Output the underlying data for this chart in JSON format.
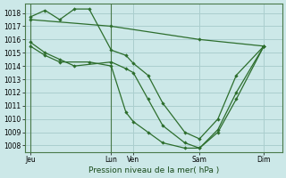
{
  "title": "Pression niveau de la mer( hPa )",
  "background_color": "#cce8e8",
  "grid_color": "#aacece",
  "line_color": "#2d6e2d",
  "ylim": [
    1007.5,
    1018.7
  ],
  "yticks": [
    1008,
    1009,
    1010,
    1011,
    1012,
    1013,
    1014,
    1015,
    1016,
    1017,
    1018
  ],
  "xlim": [
    0,
    7.0
  ],
  "xtick_positions": [
    0.15,
    2.35,
    2.95,
    4.75,
    6.5
  ],
  "xtick_labels": [
    "Jeu",
    "Lun",
    "Ven",
    "Sam",
    "Dim"
  ],
  "vlines": [
    0.15,
    2.35
  ],
  "series": [
    {
      "x": [
        0.15,
        0.55,
        0.95,
        1.35,
        1.75,
        2.35,
        2.75,
        2.95,
        3.35,
        3.75,
        4.35,
        4.75,
        5.25,
        5.75,
        6.5
      ],
      "y": [
        1017.7,
        1018.2,
        1017.5,
        1018.3,
        1018.3,
        1015.2,
        1014.8,
        1014.2,
        1013.3,
        1011.2,
        1009.0,
        1008.5,
        1010.0,
        1013.3,
        1015.5
      ]
    },
    {
      "x": [
        0.15,
        0.55,
        0.95,
        1.35,
        2.35,
        2.75,
        2.95,
        3.35,
        3.75,
        4.35,
        4.75,
        5.25,
        5.75,
        6.5
      ],
      "y": [
        1015.8,
        1015.0,
        1014.5,
        1014.0,
        1014.3,
        1013.8,
        1013.5,
        1011.5,
        1009.5,
        1008.2,
        1007.8,
        1009.0,
        1011.5,
        1015.5
      ]
    },
    {
      "x": [
        0.15,
        0.55,
        0.95,
        1.75,
        2.35,
        2.75,
        2.95,
        3.35,
        3.75,
        4.35,
        4.75,
        5.25,
        5.75,
        6.5
      ],
      "y": [
        1015.5,
        1014.8,
        1014.3,
        1014.3,
        1014.0,
        1010.5,
        1009.8,
        1009.0,
        1008.2,
        1007.8,
        1007.8,
        1009.2,
        1012.0,
        1015.5
      ]
    },
    {
      "x": [
        0.15,
        2.35,
        4.75,
        6.5
      ],
      "y": [
        1017.5,
        1017.0,
        1016.0,
        1015.5
      ]
    }
  ]
}
